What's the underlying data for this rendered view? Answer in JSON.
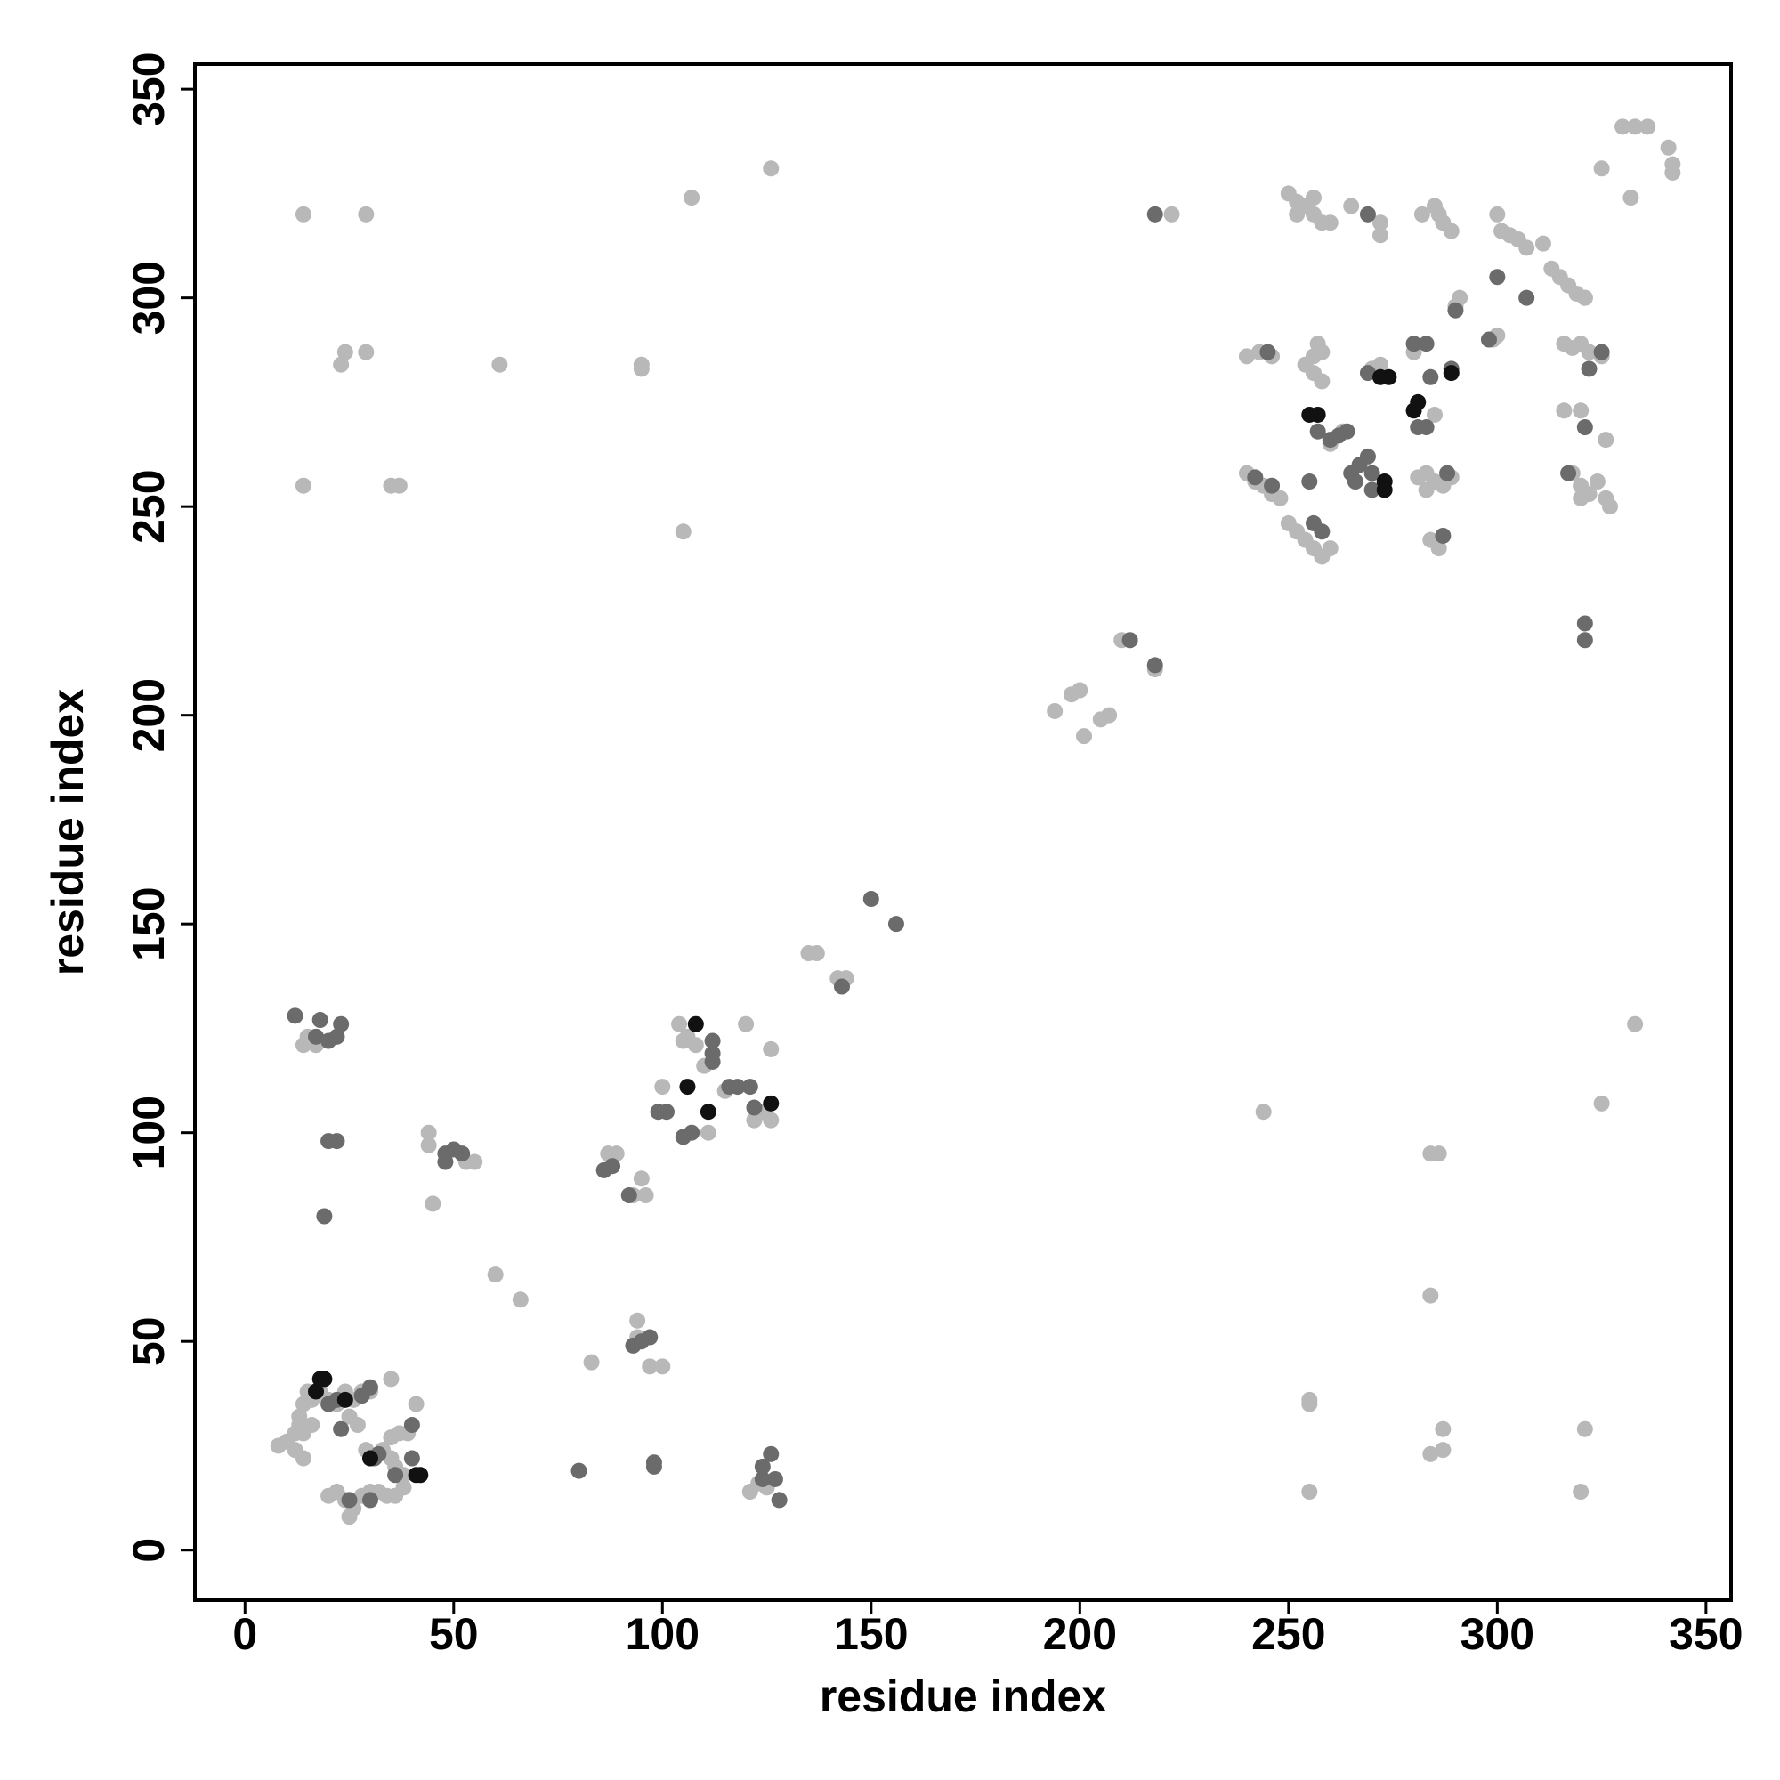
{
  "chart_data": {
    "type": "scatter",
    "xlabel": "residue index",
    "ylabel": "residue index",
    "xlim": [
      -12,
      356
    ],
    "ylim": [
      -12,
      356
    ],
    "xticks": [
      0,
      50,
      100,
      150,
      200,
      250,
      300,
      350
    ],
    "yticks": [
      0,
      50,
      100,
      150,
      200,
      250,
      300,
      350
    ],
    "series": [
      {
        "color": "#b8b8b8",
        "x": [
          8,
          10,
          12,
          12,
          13,
          14,
          15,
          14,
          13,
          16,
          18,
          20,
          22,
          24,
          26,
          28,
          30,
          25,
          27,
          29,
          31,
          33,
          35,
          37,
          39,
          35,
          36,
          38,
          22,
          24,
          26,
          28,
          30,
          32,
          34,
          36,
          38,
          35,
          41,
          25,
          20,
          14,
          16,
          14,
          29,
          23,
          24,
          29,
          61,
          95,
          95,
          14,
          35,
          37,
          107,
          126,
          105,
          14,
          17,
          15,
          44,
          44,
          53,
          55,
          45,
          60,
          66,
          87,
          89,
          95,
          93,
          96,
          94,
          94,
          97,
          100,
          83,
          100,
          104,
          106,
          108,
          105,
          110,
          111,
          115,
          120,
          126,
          122,
          124,
          126,
          121,
          123,
          125,
          135,
          137,
          142,
          144,
          194,
          198,
          200,
          201,
          205,
          207,
          210,
          218,
          222,
          244,
          255,
          255,
          255,
          284,
          286,
          284,
          284,
          287,
          287,
          321,
          320,
          325,
          333,
          325,
          332,
          330,
          333,
          336,
          341,
          342,
          342,
          250,
          252,
          254,
          256,
          258,
          260,
          252,
          256,
          265,
          272,
          272,
          282,
          285,
          287,
          289,
          286,
          290,
          291,
          300,
          301,
          303,
          305,
          307,
          311,
          313,
          315,
          317,
          319,
          321,
          316,
          318,
          320,
          322,
          325,
          299,
          300,
          256,
          257,
          258,
          256,
          258,
          254,
          240,
          243,
          246,
          240,
          242,
          244,
          246,
          248,
          250,
          252,
          254,
          256,
          258,
          260,
          270,
          272,
          280,
          281,
          283,
          285,
          287,
          289,
          283,
          285,
          286,
          284,
          318,
          320,
          322,
          324,
          326,
          327,
          316,
          320,
          321,
          326,
          320,
          263,
          260
        ],
        "y": [
          25,
          26,
          24,
          28,
          32,
          35,
          38,
          22,
          30,
          36,
          38,
          36,
          35,
          38,
          36,
          38,
          38,
          32,
          30,
          24,
          22,
          24,
          27,
          28,
          28,
          22,
          20,
          18,
          14,
          12,
          10,
          13,
          14,
          14,
          13,
          13,
          15,
          41,
          35,
          8,
          13,
          28,
          30,
          320,
          320,
          284,
          287,
          287,
          284,
          283,
          284,
          255,
          255,
          255,
          324,
          331,
          244,
          121,
          121,
          123,
          100,
          97,
          93,
          93,
          83,
          66,
          60,
          95,
          95,
          89,
          85,
          85,
          55,
          51,
          44,
          44,
          45,
          111,
          126,
          123,
          121,
          122,
          116,
          100,
          110,
          126,
          120,
          103,
          105,
          103,
          14,
          16,
          15,
          143,
          143,
          137,
          137,
          201,
          205,
          206,
          195,
          199,
          200,
          218,
          211,
          320,
          105,
          36,
          35,
          14,
          95,
          95,
          61,
          23,
          24,
          29,
          29,
          14,
          107,
          126,
          331,
          324,
          341,
          341,
          341,
          336,
          332,
          330,
          325,
          323,
          322,
          320,
          318,
          318,
          320,
          324,
          322,
          318,
          315,
          320,
          322,
          318,
          316,
          320,
          298,
          300,
          320,
          316,
          315,
          314,
          312,
          313,
          307,
          305,
          303,
          301,
          300,
          289,
          288,
          289,
          287,
          286,
          290,
          291,
          286,
          289,
          287,
          282,
          280,
          284,
          286,
          287,
          286,
          258,
          256,
          255,
          253,
          252,
          246,
          244,
          242,
          240,
          238,
          240,
          283,
          284,
          287,
          257,
          258,
          256,
          255,
          257,
          254,
          272,
          240,
          242,
          258,
          255,
          253,
          256,
          252,
          250,
          273,
          273,
          300,
          266,
          252,
          268,
          265
        ]
      },
      {
        "color": "#6b6b6b",
        "x": [
          12,
          18,
          23,
          17,
          20,
          22,
          20,
          22,
          19,
          48,
          50,
          52,
          48,
          86,
          88,
          92,
          95,
          97,
          93,
          99,
          101,
          105,
          107,
          112,
          112,
          112,
          116,
          118,
          121,
          122,
          80,
          98,
          98,
          124,
          126,
          124,
          127,
          128,
          150,
          156,
          143,
          218,
          212,
          218,
          245,
          256,
          258,
          255,
          257,
          260,
          262,
          264,
          265,
          267,
          269,
          266,
          270,
          270,
          269,
          269,
          280,
          283,
          281,
          283,
          284,
          289,
          287,
          288,
          290,
          298,
          300,
          307,
          317,
          321,
          321,
          321,
          322,
          325,
          20,
          23,
          30,
          31,
          36,
          40,
          40,
          22,
          28,
          25,
          30,
          32,
          242,
          246
        ],
        "y": [
          128,
          127,
          126,
          123,
          122,
          123,
          98,
          98,
          80,
          95,
          96,
          95,
          93,
          91,
          92,
          85,
          50,
          51,
          49,
          105,
          105,
          99,
          100,
          122,
          119,
          117,
          111,
          111,
          111,
          106,
          19,
          21,
          20,
          20,
          23,
          17,
          17,
          12,
          156,
          150,
          135,
          320,
          218,
          212,
          287,
          246,
          244,
          256,
          268,
          266,
          267,
          268,
          258,
          260,
          262,
          256,
          258,
          254,
          320,
          282,
          289,
          289,
          269,
          269,
          281,
          283,
          243,
          258,
          297,
          290,
          305,
          300,
          258,
          269,
          222,
          218,
          283,
          287,
          35,
          29,
          39,
          22,
          18,
          22,
          30,
          36,
          37,
          12,
          12,
          23,
          257,
          255
        ]
      },
      {
        "color": "#111111",
        "x": [
          18,
          19,
          106,
          108,
          111,
          126,
          255,
          257,
          273,
          273,
          272,
          274,
          280,
          281,
          289,
          41,
          42,
          24,
          30,
          17
        ],
        "y": [
          41,
          41,
          111,
          126,
          105,
          107,
          272,
          272,
          256,
          254,
          281,
          281,
          273,
          275,
          282,
          18,
          18,
          36,
          22,
          38
        ]
      }
    ]
  }
}
